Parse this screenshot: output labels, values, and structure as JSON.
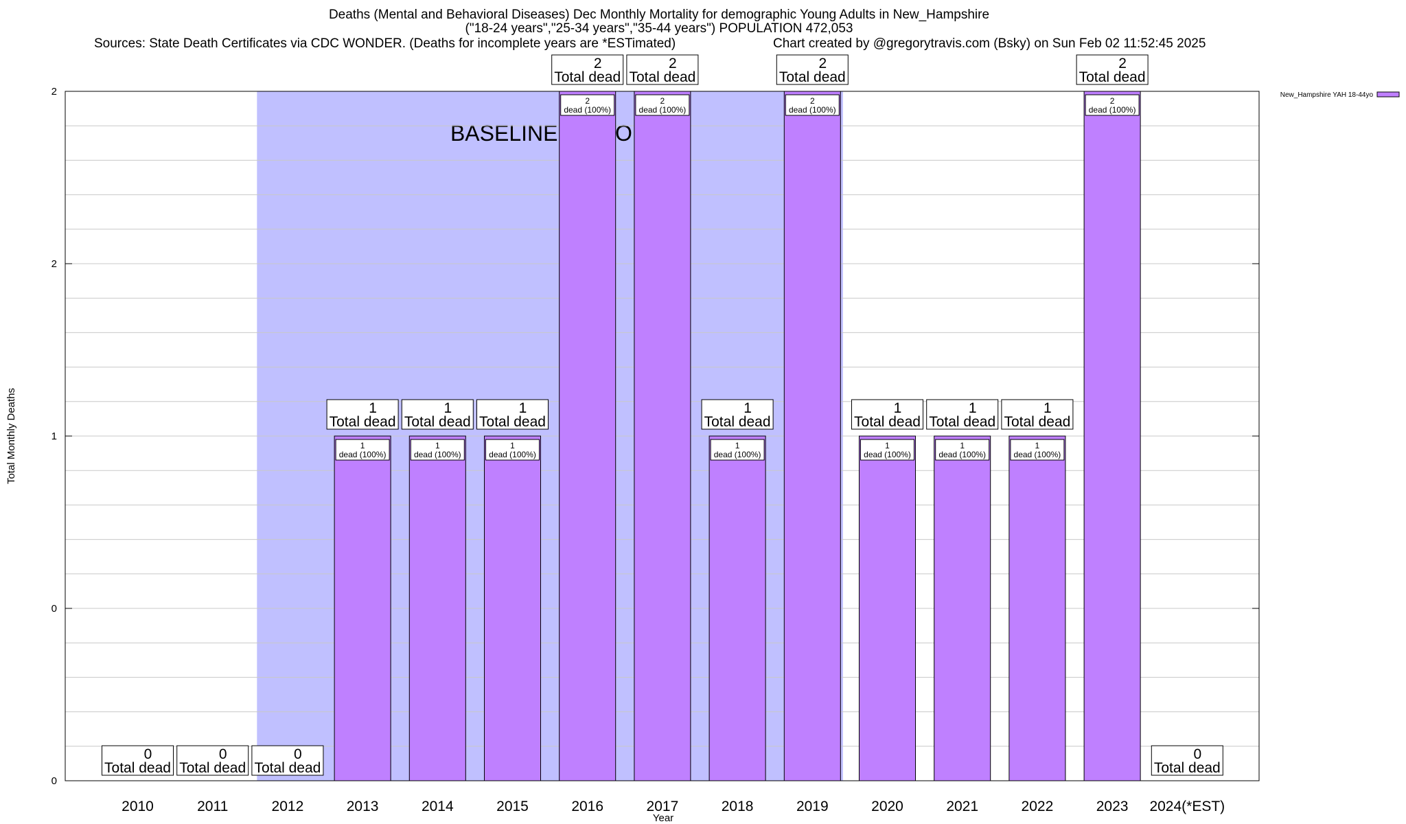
{
  "chart_data": {
    "type": "bar",
    "title": "Deaths (Mental and Behavioral Diseases) Dec Monthly Mortality for demographic Young Adults in New_Hampshire",
    "title_line2": "(\"18-24 years\",\"25-34 years\",\"35-44 years\") POPULATION 472,053",
    "sources": "Sources: State Death Certificates via CDC WONDER. (Deaths for incomplete years are *ESTimated)",
    "credit": "Chart created by @gregorytravis.com (Bsky) on Sun Feb 02 11:52:45 2025",
    "xlabel": "Year",
    "ylabel": "Total Monthly Deaths",
    "ylim": [
      0,
      2
    ],
    "ytick_labels": [
      "0",
      "0",
      "1",
      "2",
      "2"
    ],
    "categories": [
      "2010",
      "2011",
      "2012",
      "2013",
      "2014",
      "2015",
      "2016",
      "2017",
      "2018",
      "2019",
      "2020",
      "2021",
      "2022",
      "2023",
      "2024(*EST)"
    ],
    "series": [
      {
        "name": "New_Hampshire YAH 18-44yo",
        "values": [
          0,
          0,
          0,
          1,
          1,
          1,
          2,
          2,
          1,
          2,
          1,
          1,
          1,
          2,
          0
        ]
      }
    ],
    "total_label_suffix": "Total dead",
    "bar_label_suffix": "dead (100%)",
    "baseline_label": "BASELINE PERIOD",
    "baseline_range": [
      "2012",
      "2019"
    ],
    "grid": true,
    "legend_position": "top-right",
    "colors": {
      "bar": "#bf80ff",
      "baseline": "#c0c0ff"
    }
  }
}
